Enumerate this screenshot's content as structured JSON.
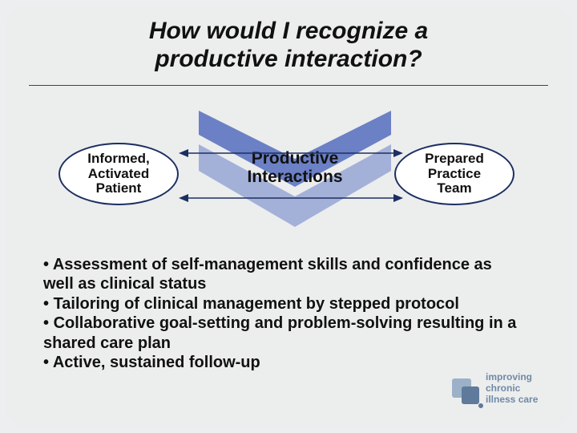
{
  "title_line1": "How would I recognize a",
  "title_line2": "productive interaction?",
  "diagram": {
    "left_oval": "Informed,\nActivated\nPatient",
    "right_oval": "Prepared\nPractice\nTeam",
    "center_label": "Productive\nInteractions",
    "chevrons": {
      "top_color": "#6b80c5",
      "bottom_color": "#a3b1d9",
      "arrow_line_color": "#1c2f63"
    },
    "oval_border_color": "#1c2f63",
    "oval_fill": "#ffffff"
  },
  "bullets": [
    "Assessment of self-management skills and confidence as well as clinical status",
    "Tailoring of clinical management by stepped protocol",
    "Collaborative goal-setting and problem-solving resulting in a shared care plan",
    "Active, sustained follow-up"
  ],
  "logo": {
    "line1": "improving",
    "line2": "chronic",
    "line3": "illness care",
    "mark_color_dark": "#5f7a9b",
    "mark_color_light": "#9bb1c8",
    "text_color": "#6f8aa7"
  },
  "background": "#eceded",
  "title_fontsize": 30,
  "body_fontsize": 20
}
